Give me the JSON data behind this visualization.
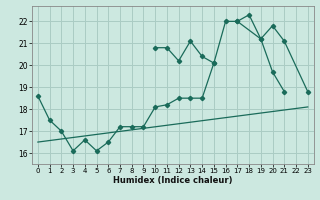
{
  "xlabel": "Humidex (Indice chaleur)",
  "background_color": "#cce8e0",
  "grid_color": "#aaccc4",
  "line_color": "#1a6b5a",
  "xlim": [
    -0.5,
    23.5
  ],
  "ylim": [
    15.5,
    22.7
  ],
  "yticks": [
    16,
    17,
    18,
    19,
    20,
    21,
    22
  ],
  "xticks": [
    0,
    1,
    2,
    3,
    4,
    5,
    6,
    7,
    8,
    9,
    10,
    11,
    12,
    13,
    14,
    15,
    16,
    17,
    18,
    19,
    20,
    21,
    22,
    23
  ],
  "series1_x": [
    0,
    1,
    2,
    3,
    4,
    5,
    6,
    7,
    8,
    9,
    10,
    11,
    12,
    13,
    14,
    15,
    16,
    17,
    18,
    19,
    20,
    21
  ],
  "series1_y": [
    18.6,
    17.5,
    17.0,
    16.1,
    16.6,
    16.1,
    16.5,
    17.2,
    17.2,
    17.2,
    18.1,
    18.2,
    18.5,
    18.5,
    18.5,
    20.1,
    22.0,
    22.0,
    22.3,
    21.2,
    19.7,
    18.8
  ],
  "series2_segments": [
    {
      "x": [
        10,
        11,
        12,
        13,
        14,
        15
      ],
      "y": [
        20.8,
        20.8,
        20.2,
        21.1,
        20.4,
        20.1
      ]
    },
    {
      "x": [
        17,
        19,
        20,
        21,
        23
      ],
      "y": [
        22.0,
        21.2,
        21.8,
        21.1,
        18.8
      ]
    }
  ],
  "trend_x": [
    0,
    23
  ],
  "trend_y": [
    16.5,
    18.1
  ]
}
